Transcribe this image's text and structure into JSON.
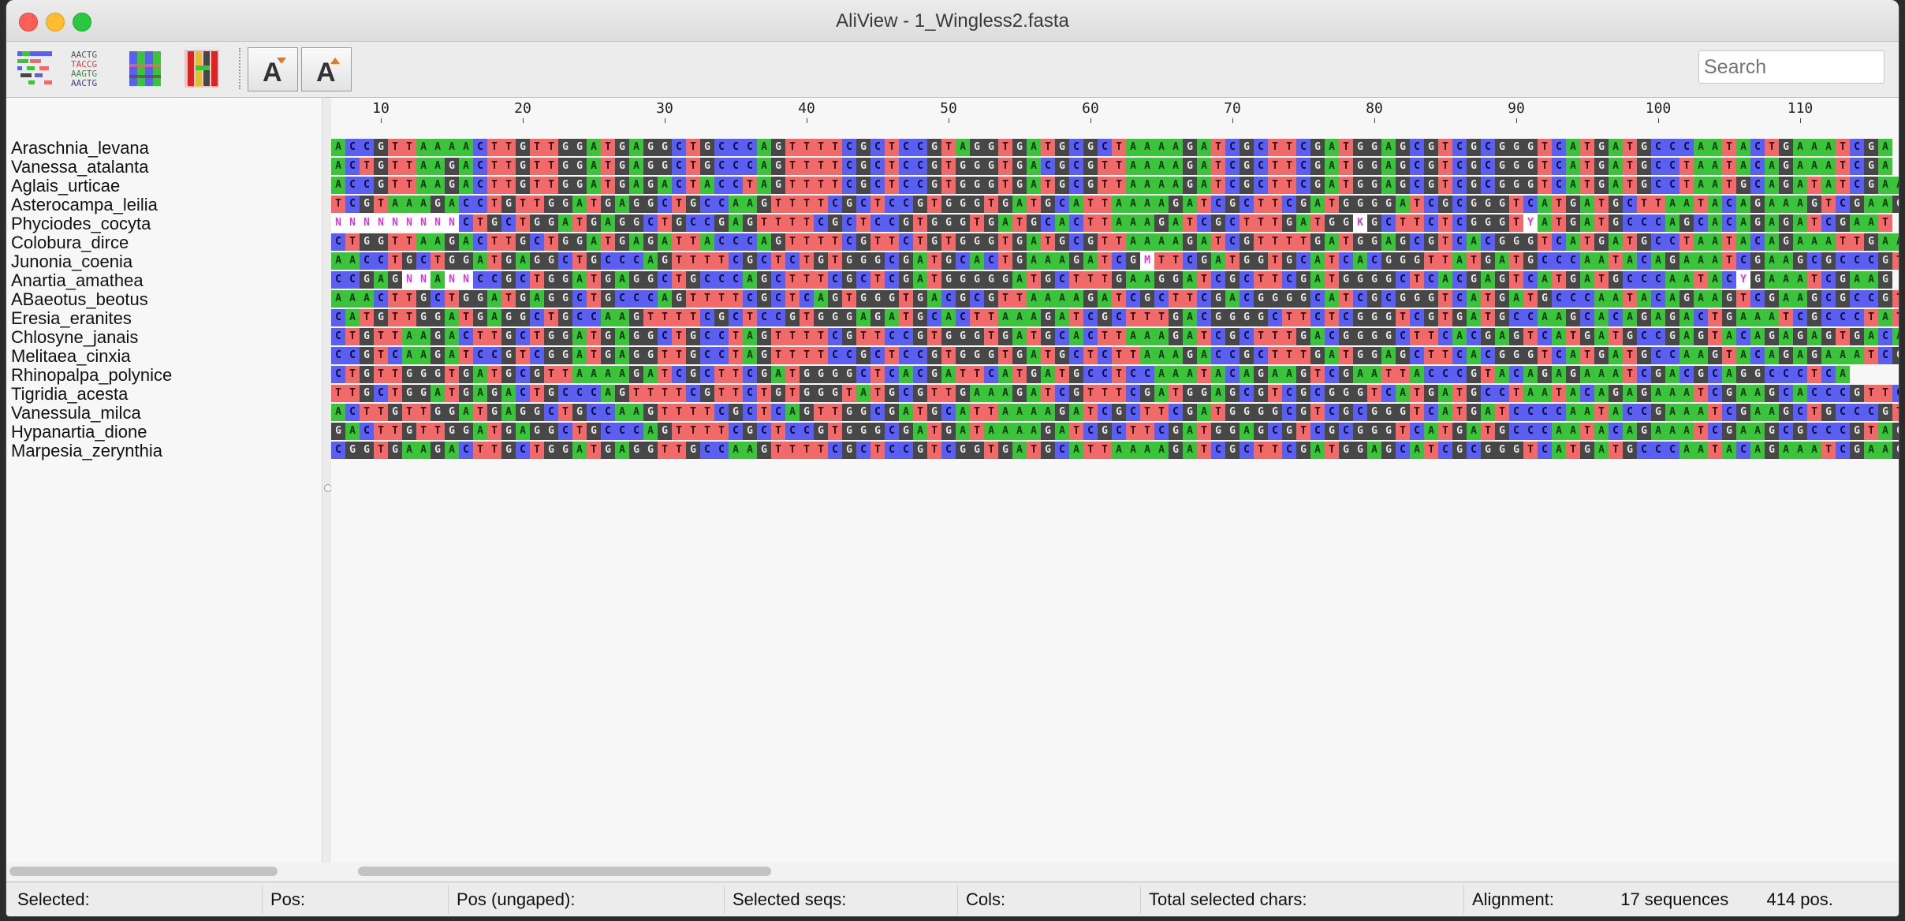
{
  "window": {
    "title": "AliView - 1_Wingless2.fasta"
  },
  "toolbar": {
    "icons": [
      "alignment-overview-icon",
      "text-alignment-icon",
      "color-blocks-icon",
      "highlight-consensus-icon"
    ],
    "font_buttons": [
      "decrease-font-size-icon",
      "increase-font-size-icon"
    ],
    "search_placeholder": "Search"
  },
  "ruler": {
    "labels": [
      "10",
      "20",
      "30",
      "40",
      "50",
      "60",
      "70",
      "80",
      "90",
      "100",
      "110"
    ]
  },
  "colors": {
    "A": "#3bc43b",
    "C": "#5a5ff0",
    "G": "#474747",
    "T": "#f16a6a",
    "ambiguous": "#ffffff"
  },
  "sequences": [
    {
      "name": "Araschnia_levana",
      "seq": "ACCGTTAAAACTTGTTGGATGAGGCTGCCCAGTTTTCGCTCCGTAGGTGATGCGCTAAAAGATCGCTTCGATGGAGCGTCGCGGGTCATGATGCCCAATACTGAAATCGA"
    },
    {
      "name": "Vanessa_atalanta",
      "seq": "ACTGTTAAGACTTGTTGGATGAGGCTGCCCAGTTTTCGCTCCGTGGGTGACGCGTTAAAAGATCGCTTCGATGGAGCGTCGCGGGTCATGATGCCTAATACAGAAATCGA"
    },
    {
      "name": "Aglais_urticae",
      "seq": "ACCGTTAAGACTTGTTGGATGAGACTACCTAGTTTTCGCTCCGTGGGTGATGCGTTAAAAGATCGCTTCGATGGAGCGTCGCGGGTCATGATGCCTAATGCAGATATCGAAA"
    },
    {
      "name": "Asterocampa_leilia",
      "seq": "TCGTAAAGACCTGTTGGATGAGGCTGCCAAGTTTTCGCTCCGTGGGTGATGCATTAAAAGATCGCTTCGATGGGGATCGCGGGTCATGATGCTTAATACAGAAAGTCGAAG"
    },
    {
      "name": "Phyciodes_cocyta",
      "seq": "NNNNNNNNNCTGCTGGATGAGGCTGCCGAGTTTTCGCTCCGTGGGTGATGCACTTAAAGATCGCTTTGATGGKGCTTCTCGGGTYATGATGCCCAGCACAGAGATCGAAT"
    },
    {
      "name": "Colobura_dirce",
      "seq": "CTGGTTAAGACTTGCTGGATGAGATTACCCAGTTTTCGTTCTGTGGGTGATGCGTTAAAAGATCGTTTTGATGGAGCGTCACGGGTCATGATGCCTAATACAGAAATTGAA"
    },
    {
      "name": "Junonia_coenia",
      "seq": "AACCTGCTGGATGAGGCTGCCCAGTTTTCGCTCTGTGGGCGATGCACTGAAAGATCGMTTCGATGGTGCATCACGGGTTATGATGCCCAATACAGAAATCGAAGCGCCCGT"
    },
    {
      "name": "Anartia_amathea",
      "seq": "CCGAGNNANNCCGCTGGATGAGGCTGCCCAGCTTTCGCTCGATGGGGGATGCTTTGAAGGATCGCTTCGATGGGGCTCACGAGTCATGATGCCCAATACYGAAATCGAAG"
    },
    {
      "name": "ABaeotus_beotus",
      "seq": "AAACTTGCTGGATGAGGCTGCCCAGTTTTCGCTCAGTGGGTGACGCGTTAAAAGATCGCTTCGACGGGGCATCGCGGGTCATGATGCCCAATACAGAAGTCGAAGCGCCGT"
    },
    {
      "name": "Eresia_eranites",
      "seq": "CATGTTGGATGAGGCTGCCAAGTTTTCGCTCCGTGGGAGATGCACTTAAAGATCGCTTTGACGGGGCTTCTCGGGTCGTGATGCCAAGCACAGAGACTGAAATCGCCCTAT"
    },
    {
      "name": "Chlosyne_janais",
      "seq": "CTGTTAAGACTTGCTGGATGAGGCTGCCTAGTTTTCGTTCCGTGGGTGATGCACTTAAAGATCGCTTTGACGGGGCTTCACGAGTCATGATGCCGAGTACAGAGAGTGACA"
    },
    {
      "name": "Melitaea_cinxia",
      "seq": "CCGTCAAGATCCGTCGGATGAGGTTGCCTAGTTTTCCGCTCCGTGGGTGATGCTCTTAAAGACCGCTTTGATGGAGCTTCACGGGTCATGATGCCAAGTACAGAGAAATCGA"
    },
    {
      "name": "Rhinopalpa_polynice",
      "seq": "CTGTTGGGTGATGCGTTAAAAGATCGCTTCGATGGGGCTCACGATTCATGATGCCTCCAAATACAGAAGTCGAATTACCCGTACAGAGAAATCGACGCAGGCCCTCA"
    },
    {
      "name": "Tigridia_acesta",
      "seq": "TTGCTGGATGAGACTGCCCAGTTTTCGTTCTGTGGGTATGCGTTGAAAGATCGTTTCGATGGAGCGTCGCGGGTCATGATGCCTAATACAGAGAAATCGAAGCACCCGTTCA"
    },
    {
      "name": "Vanessula_milca",
      "seq": "ACTTGTTGGATGAGGCTGCCAAGTTTTCGCTCAGTTGGCGATGCATTAAAAGATCGCTTCGATGGGGCGTCGCGGGTCATGATCCCCAATACCGAAATCGAAGCTGCCCGT"
    },
    {
      "name": "Hypanartia_dione",
      "seq": "GACTTGTTGGATGAGGCTGCCCAGTTTTCGCTCCGTGGGCGATGATAAAAGATCGCTTCGATGGAGCGTCGCGGGTCATGATGCCCAATACAGAAATCGAAGCGCCCGTAG"
    },
    {
      "name": "Marpesia_zerynthia",
      "seq": "CGGTGAAGACTTGCTGGATGAGGTTGCCAAGTTTTCGCTCCGTCGGTGATGCATTAAAAGATCGCTTCGATGGAGCATCGCGGGTCATGATGCCCAATACAGAAATCGAAG"
    }
  ],
  "status": {
    "selected_label": "Selected:",
    "pos_label": "Pos:",
    "pos_ungaped_label": "Pos (ungaped):",
    "selected_seqs_label": "Selected seqs:",
    "cols_label": "Cols:",
    "total_selected_label": "Total selected chars:",
    "alignment_label": "Alignment:",
    "sequences_count": "17 sequences",
    "positions_count": "414 pos."
  }
}
